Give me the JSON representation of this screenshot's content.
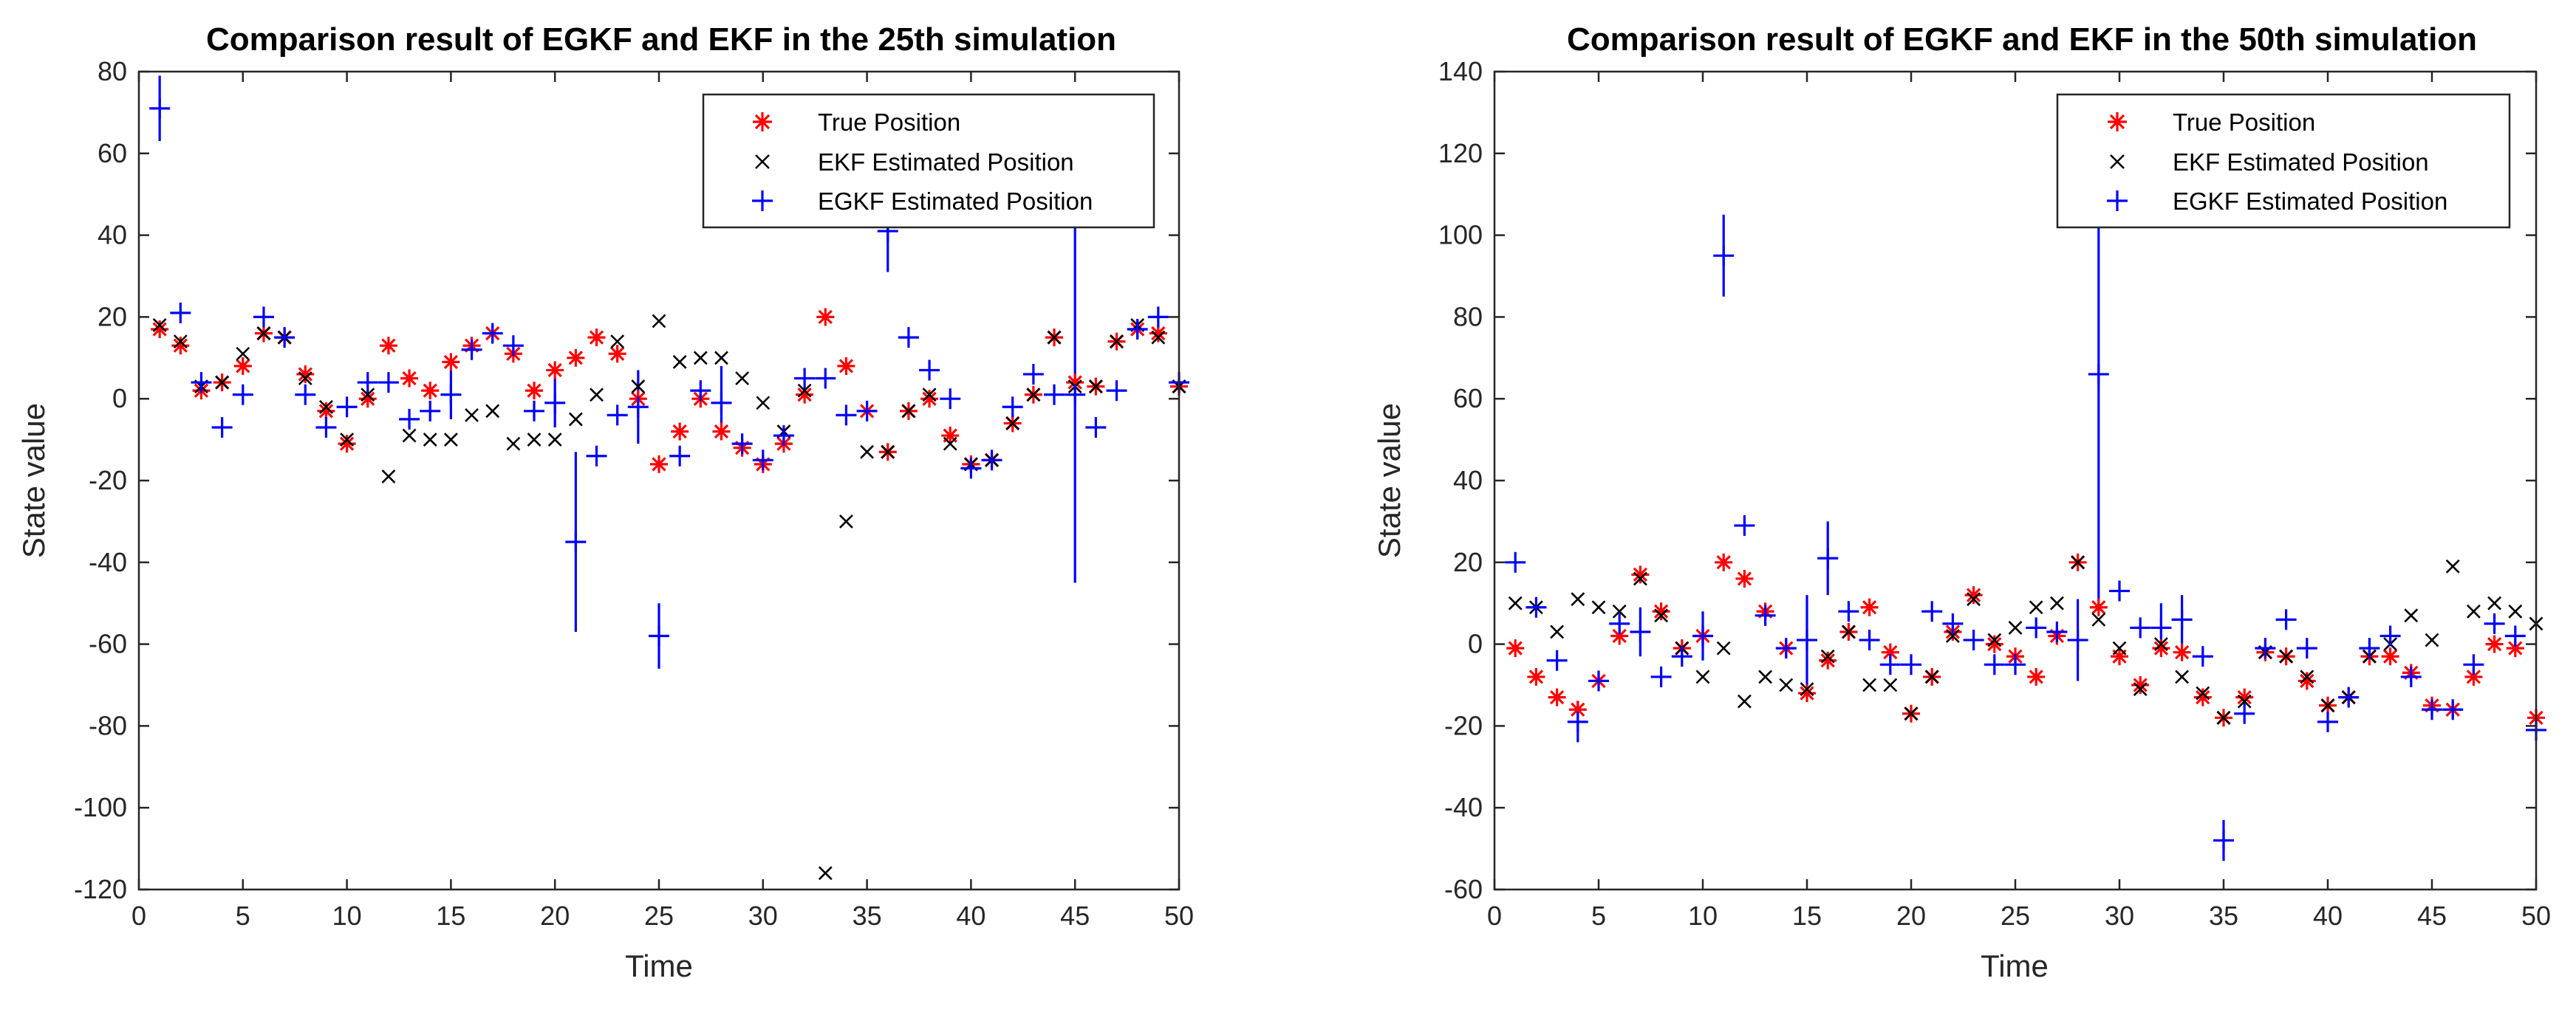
{
  "chart_data": [
    {
      "type": "scatter",
      "title": "Comparison result of EGKF and EKF in the 25th simulation",
      "xlabel": "Time",
      "ylabel": "State value",
      "xlim": [
        0,
        50
      ],
      "ylim": [
        -120,
        80
      ],
      "xticks": [
        0,
        5,
        10,
        15,
        20,
        25,
        30,
        35,
        40,
        45,
        50
      ],
      "yticks": [
        -120,
        -100,
        -80,
        -60,
        -40,
        -20,
        0,
        20,
        40,
        60,
        80
      ],
      "legend_position": "top-right",
      "x": [
        1,
        2,
        3,
        4,
        5,
        6,
        7,
        8,
        9,
        10,
        11,
        12,
        13,
        14,
        15,
        16,
        17,
        18,
        19,
        20,
        21,
        22,
        23,
        24,
        25,
        26,
        27,
        28,
        29,
        30,
        31,
        32,
        33,
        34,
        35,
        36,
        37,
        38,
        39,
        40,
        41,
        42,
        43,
        44,
        45,
        46,
        47,
        48,
        49,
        50
      ],
      "series": [
        {
          "name": "True Position",
          "marker": "asterisk",
          "color": "#ff0000",
          "values": [
            17,
            13,
            2,
            4,
            8,
            16,
            15,
            6,
            -3,
            -11,
            0,
            13,
            5,
            2,
            9,
            13,
            16,
            11,
            2,
            7,
            10,
            15,
            11,
            0,
            -16,
            -8,
            0,
            -8,
            -12,
            -16,
            -11,
            1,
            20,
            8,
            -3,
            -13,
            -3,
            0,
            -9,
            -16,
            -15,
            -6,
            1,
            15,
            4,
            3,
            14,
            17,
            16,
            3
          ]
        },
        {
          "name": "EKF Estimated Position",
          "marker": "x",
          "color": "#000000",
          "values": [
            18,
            14,
            3,
            4,
            11,
            16,
            15,
            5,
            -2,
            -10,
            1,
            -19,
            -9,
            -10,
            -10,
            -4,
            -3,
            -11,
            -10,
            -10,
            -5,
            1,
            14,
            3,
            19,
            9,
            10,
            10,
            5,
            -1,
            -8,
            2,
            -116,
            -30,
            -13,
            -13,
            -3,
            1,
            -11,
            -16,
            -15,
            -6,
            1,
            15,
            3,
            3,
            14,
            18,
            15,
            3
          ]
        },
        {
          "name": "EGKF Estimated Position",
          "marker": "plus",
          "color": "#0000ff",
          "values": [
            71,
            21,
            4,
            -7,
            1,
            20,
            15,
            1,
            -7,
            -2,
            4,
            4,
            -5,
            -3,
            1,
            12,
            16,
            13,
            -3,
            -1,
            -35,
            -14,
            -4,
            -2,
            -58,
            -14,
            2,
            -1,
            -11,
            -15,
            -9,
            5,
            5,
            -4,
            -3,
            41,
            15,
            7,
            0,
            -17,
            -15,
            -2,
            6,
            1,
            1,
            -7,
            2,
            17,
            20,
            4
          ]
        }
      ],
      "egkf_error_bar_halfwidths": [
        8,
        0,
        0,
        0,
        0,
        0,
        0,
        0,
        0,
        0,
        0,
        0,
        0,
        0,
        6,
        0,
        0,
        0,
        0,
        6,
        22,
        0,
        0,
        9,
        8,
        0,
        0,
        9,
        0,
        0,
        0,
        0,
        0,
        0,
        0,
        10,
        0,
        0,
        0,
        0,
        0,
        0,
        0,
        0,
        46,
        0,
        0,
        0,
        0,
        0
      ]
    },
    {
      "type": "scatter",
      "title": "Comparison result of EGKF and EKF in the 50th simulation",
      "xlabel": "Time",
      "ylabel": "State value",
      "xlim": [
        0,
        50
      ],
      "ylim": [
        -60,
        140
      ],
      "xticks": [
        0,
        5,
        10,
        15,
        20,
        25,
        30,
        35,
        40,
        45,
        50
      ],
      "yticks": [
        -60,
        -40,
        -20,
        0,
        20,
        40,
        60,
        80,
        100,
        120,
        140
      ],
      "legend_position": "top-right",
      "x": [
        1,
        2,
        3,
        4,
        5,
        6,
        7,
        8,
        9,
        10,
        11,
        12,
        13,
        14,
        15,
        16,
        17,
        18,
        19,
        20,
        21,
        22,
        23,
        24,
        25,
        26,
        27,
        28,
        29,
        30,
        31,
        32,
        33,
        34,
        35,
        36,
        37,
        38,
        39,
        40,
        41,
        42,
        43,
        44,
        45,
        46,
        47,
        48,
        49,
        50
      ],
      "series": [
        {
          "name": "True Position",
          "marker": "asterisk",
          "color": "#ff0000",
          "values": [
            -1,
            -8,
            -13,
            -16,
            -9,
            2,
            17,
            8,
            -1,
            2,
            20,
            16,
            8,
            -1,
            -12,
            -4,
            3,
            9,
            -2,
            -17,
            -8,
            3,
            12,
            0,
            -3,
            -8,
            2,
            20,
            9,
            -3,
            -10,
            -1,
            -2,
            -13,
            -18,
            -13,
            -2,
            -3,
            -9,
            -15,
            -13,
            -3,
            -3,
            -7,
            -15,
            -16,
            -8,
            0,
            -1,
            -18
          ]
        },
        {
          "name": "EKF Estimated Position",
          "marker": "x",
          "color": "#000000",
          "values": [
            10,
            9,
            3,
            11,
            9,
            8,
            16,
            7,
            -1,
            -8,
            -1,
            -14,
            -8,
            -10,
            -11,
            -3,
            3,
            -10,
            -10,
            -17,
            -8,
            2,
            11,
            1,
            4,
            9,
            10,
            20,
            6,
            -1,
            -11,
            0,
            -8,
            -12,
            -18,
            -14,
            -2,
            -3,
            -8,
            -15,
            -13,
            -3,
            0,
            7,
            1,
            19,
            8,
            10,
            8,
            5
          ]
        },
        {
          "name": "EGKF Estimated Position",
          "marker": "plus",
          "color": "#0000ff",
          "values": [
            20,
            9,
            -4,
            -19,
            -9,
            5,
            3,
            -8,
            -3,
            2,
            95,
            29,
            7,
            -1,
            1,
            21,
            8,
            1,
            -5,
            -5,
            8,
            5,
            1,
            -5,
            -5,
            4,
            3,
            1,
            66,
            13,
            4,
            4,
            6,
            -3,
            -48,
            -17,
            -1,
            6,
            -1,
            -19,
            -13,
            -1,
            2,
            -8,
            -16,
            -16,
            -5,
            5,
            2,
            -21
          ]
        }
      ],
      "egkf_error_bar_halfwidths": [
        0,
        0,
        0,
        5,
        0,
        0,
        6,
        0,
        0,
        6,
        10,
        0,
        0,
        0,
        11,
        9,
        0,
        0,
        0,
        0,
        0,
        0,
        0,
        0,
        0,
        0,
        0,
        10,
        57,
        0,
        0,
        6,
        6,
        0,
        5,
        0,
        0,
        0,
        0,
        0,
        0,
        0,
        0,
        0,
        0,
        0,
        0,
        0,
        0,
        0
      ]
    }
  ]
}
